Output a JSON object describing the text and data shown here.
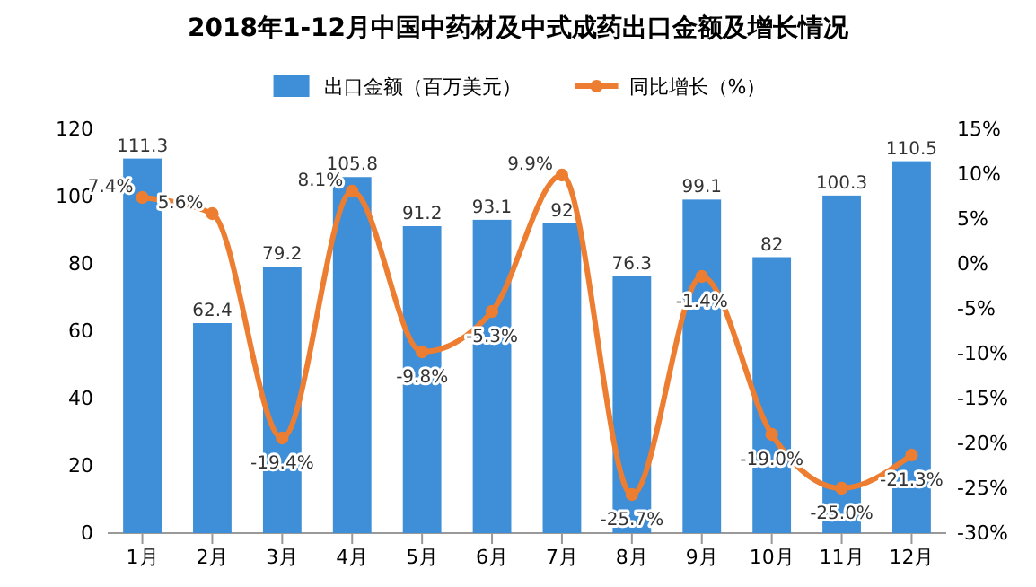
{
  "chart_data": {
    "type": "bar",
    "title": "2018年1-12月中国中药材及中式成药出口金额及增长情况",
    "categories": [
      "1月",
      "2月",
      "3月",
      "4月",
      "5月",
      "6月",
      "7月",
      "8月",
      "9月",
      "10月",
      "11月",
      "12月"
    ],
    "series": [
      {
        "name": "出口金额（百万美元）",
        "type": "bar",
        "color": "#3e8fd8",
        "values": [
          111.3,
          62.4,
          79.2,
          105.8,
          91.2,
          93.1,
          92,
          76.3,
          99.1,
          82,
          100.3,
          110.5
        ],
        "value_labels": [
          "111.3",
          "62.4",
          "79.2",
          "105.8",
          "91.2",
          "93.1",
          "92",
          "76.3",
          "99.1",
          "82",
          "100.3",
          "110.5"
        ]
      },
      {
        "name": "同比增长（%）",
        "type": "line",
        "axis": "y2",
        "color": "#ed7d31",
        "marker": "circle",
        "values": [
          7.4,
          5.6,
          -19.4,
          8.1,
          -9.8,
          -5.3,
          9.9,
          -25.7,
          -1.4,
          -19.0,
          -25.0,
          -21.3
        ],
        "value_labels": [
          "7.4%",
          "5.6%",
          "-19.4%",
          "8.1%",
          "-9.8%",
          "-5.3%",
          "9.9%",
          "-25.7%",
          "-1.4%",
          "-19.0%",
          "-25.0%",
          "-21.3%"
        ]
      }
    ],
    "ylim": [
      0,
      120
    ],
    "yticks": [
      0,
      20,
      40,
      60,
      80,
      100,
      120
    ],
    "y2lim": [
      -30,
      15
    ],
    "y2ticks": [
      {
        "value": -30,
        "label": "-30%"
      },
      {
        "value": -25,
        "label": "-25%"
      },
      {
        "value": -20,
        "label": "-20%"
      },
      {
        "value": -15,
        "label": "-15%"
      },
      {
        "value": -10,
        "label": "-10%"
      },
      {
        "value": -5,
        "label": "-5%"
      },
      {
        "value": 0,
        "label": "0%"
      },
      {
        "value": 5,
        "label": "5%"
      },
      {
        "value": 10,
        "label": "10%"
      },
      {
        "value": 15,
        "label": "15%"
      }
    ],
    "legend": "top"
  }
}
